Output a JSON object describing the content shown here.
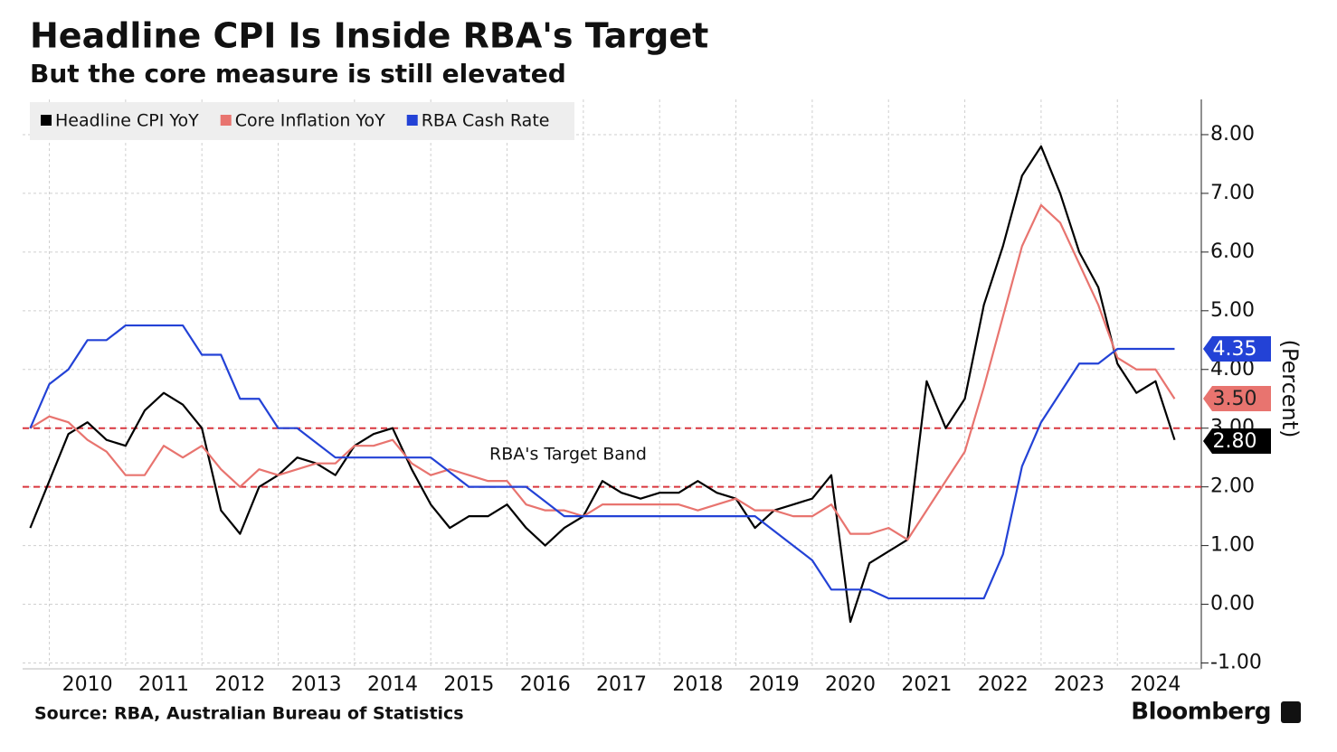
{
  "chart_data": {
    "type": "line",
    "title": "Headline CPI Is Inside RBA's Target",
    "subtitle": "But the core measure is still elevated",
    "source": "Source: RBA, Australian Bureau of Statistics",
    "brand": "Bloomberg",
    "y_axis_label": "(Percent)",
    "annotation": "RBA's Target Band",
    "reference_lines": [
      2,
      3
    ],
    "reference_color": "#d9363e",
    "grid": true,
    "legend_position": "top-left",
    "x": [
      2009.75,
      2010,
      2010.25,
      2010.5,
      2010.75,
      2011,
      2011.25,
      2011.5,
      2011.75,
      2012,
      2012.25,
      2012.5,
      2012.75,
      2013,
      2013.25,
      2013.5,
      2013.75,
      2014,
      2014.25,
      2014.5,
      2014.75,
      2015,
      2015.25,
      2015.5,
      2015.75,
      2016,
      2016.25,
      2016.5,
      2016.75,
      2017,
      2017.25,
      2017.5,
      2017.75,
      2018,
      2018.25,
      2018.5,
      2018.75,
      2019,
      2019.25,
      2019.5,
      2019.75,
      2020,
      2020.25,
      2020.5,
      2020.75,
      2021,
      2021.25,
      2021.5,
      2021.75,
      2022,
      2022.25,
      2022.5,
      2022.75,
      2023,
      2023.25,
      2023.5,
      2023.75,
      2024,
      2024.25,
      2024.5,
      2024.75
    ],
    "xlim": [
      2009.65,
      2025.1
    ],
    "xticks": [
      {
        "value": 2010,
        "label": "2010"
      },
      {
        "value": 2011,
        "label": "2011"
      },
      {
        "value": 2012,
        "label": "2012"
      },
      {
        "value": 2013,
        "label": "2013"
      },
      {
        "value": 2014,
        "label": "2014"
      },
      {
        "value": 2015,
        "label": "2015"
      },
      {
        "value": 2016,
        "label": "2016"
      },
      {
        "value": 2017,
        "label": "2017"
      },
      {
        "value": 2018,
        "label": "2018"
      },
      {
        "value": 2019,
        "label": "2019"
      },
      {
        "value": 2020,
        "label": "2020"
      },
      {
        "value": 2021,
        "label": "2021"
      },
      {
        "value": 2022,
        "label": "2022"
      },
      {
        "value": 2023,
        "label": "2023"
      },
      {
        "value": 2024,
        "label": "2024"
      }
    ],
    "ylim": [
      -1.1,
      8.6
    ],
    "yticks": [
      {
        "value": -1,
        "label": "-1.00"
      },
      {
        "value": 0,
        "label": "0.00"
      },
      {
        "value": 1,
        "label": "1.00"
      },
      {
        "value": 2,
        "label": "2.00"
      },
      {
        "value": 3,
        "label": "3.00"
      },
      {
        "value": 4,
        "label": "4.00"
      },
      {
        "value": 5,
        "label": "5.00"
      },
      {
        "value": 6,
        "label": "6.00"
      },
      {
        "value": 7,
        "label": "7.00"
      },
      {
        "value": 8,
        "label": "8.00"
      }
    ],
    "series": [
      {
        "name": "Headline CPI YoY",
        "color": "#000000",
        "values": [
          1.3,
          2.1,
          2.9,
          3.1,
          2.8,
          2.7,
          3.3,
          3.6,
          3.4,
          3.0,
          1.6,
          1.2,
          2.0,
          2.2,
          2.5,
          2.4,
          2.2,
          2.7,
          2.9,
          3.0,
          2.3,
          1.7,
          1.3,
          1.5,
          1.5,
          1.7,
          1.3,
          1.0,
          1.3,
          1.5,
          2.1,
          1.9,
          1.8,
          1.9,
          1.9,
          2.1,
          1.9,
          1.8,
          1.3,
          1.6,
          1.7,
          1.8,
          2.2,
          -0.3,
          0.7,
          0.9,
          1.1,
          3.8,
          3.0,
          3.5,
          5.1,
          6.1,
          7.3,
          7.8,
          7.0,
          6.0,
          5.4,
          4.1,
          3.6,
          3.8,
          2.8
        ],
        "value_labels": [
          null,
          null,
          null,
          null,
          null,
          null,
          null,
          null,
          null,
          null,
          null,
          null,
          null,
          null,
          null,
          null,
          null,
          null,
          null,
          null,
          null,
          null,
          null,
          null,
          null,
          null,
          null,
          null,
          null,
          null,
          null,
          null,
          null,
          null,
          null,
          null,
          null,
          null,
          null,
          null,
          null,
          null,
          null,
          null,
          null,
          null,
          null,
          null,
          null,
          null,
          null,
          null,
          null,
          null,
          null,
          null,
          null,
          null,
          null,
          null,
          "2.80"
        ]
      },
      {
        "name": "Core Inflation YoY",
        "color": "#e8746f",
        "values": [
          3.0,
          3.2,
          3.1,
          2.8,
          2.6,
          2.2,
          2.2,
          2.7,
          2.5,
          2.7,
          2.3,
          2.0,
          2.3,
          2.2,
          2.3,
          2.4,
          2.4,
          2.7,
          2.7,
          2.8,
          2.4,
          2.2,
          2.3,
          2.2,
          2.1,
          2.1,
          1.7,
          1.6,
          1.6,
          1.5,
          1.7,
          1.7,
          1.7,
          1.7,
          1.7,
          1.6,
          1.7,
          1.8,
          1.6,
          1.6,
          1.5,
          1.5,
          1.7,
          1.2,
          1.2,
          1.3,
          1.1,
          1.6,
          2.1,
          2.6,
          3.7,
          4.9,
          6.1,
          6.8,
          6.5,
          5.8,
          5.1,
          4.2,
          4.0,
          4.0,
          3.5
        ],
        "value_labels": [
          null,
          null,
          null,
          null,
          null,
          null,
          null,
          null,
          null,
          null,
          null,
          null,
          null,
          null,
          null,
          null,
          null,
          null,
          null,
          null,
          null,
          null,
          null,
          null,
          null,
          null,
          null,
          null,
          null,
          null,
          null,
          null,
          null,
          null,
          null,
          null,
          null,
          null,
          null,
          null,
          null,
          null,
          null,
          null,
          null,
          null,
          null,
          null,
          null,
          null,
          null,
          null,
          null,
          null,
          null,
          null,
          null,
          null,
          null,
          null,
          "3.50"
        ]
      },
      {
        "name": "RBA Cash Rate",
        "color": "#2342d6",
        "values": [
          3.0,
          3.75,
          4.0,
          4.5,
          4.5,
          4.75,
          4.75,
          4.75,
          4.75,
          4.25,
          4.25,
          3.5,
          3.5,
          3.0,
          3.0,
          2.75,
          2.5,
          2.5,
          2.5,
          2.5,
          2.5,
          2.5,
          2.25,
          2.0,
          2.0,
          2.0,
          2.0,
          1.75,
          1.5,
          1.5,
          1.5,
          1.5,
          1.5,
          1.5,
          1.5,
          1.5,
          1.5,
          1.5,
          1.5,
          1.25,
          1.0,
          0.75,
          0.25,
          0.25,
          0.25,
          0.1,
          0.1,
          0.1,
          0.1,
          0.1,
          0.1,
          0.85,
          2.35,
          3.1,
          3.6,
          4.1,
          4.1,
          4.35,
          4.35,
          4.35,
          4.35
        ],
        "value_labels": [
          null,
          null,
          null,
          null,
          null,
          null,
          null,
          null,
          null,
          null,
          null,
          null,
          null,
          null,
          null,
          null,
          null,
          null,
          null,
          null,
          null,
          null,
          null,
          null,
          null,
          null,
          null,
          null,
          null,
          null,
          null,
          null,
          null,
          null,
          null,
          null,
          null,
          null,
          null,
          null,
          null,
          null,
          null,
          null,
          null,
          null,
          null,
          null,
          null,
          null,
          null,
          null,
          null,
          null,
          null,
          null,
          null,
          null,
          null,
          null,
          "4.35"
        ]
      }
    ]
  }
}
